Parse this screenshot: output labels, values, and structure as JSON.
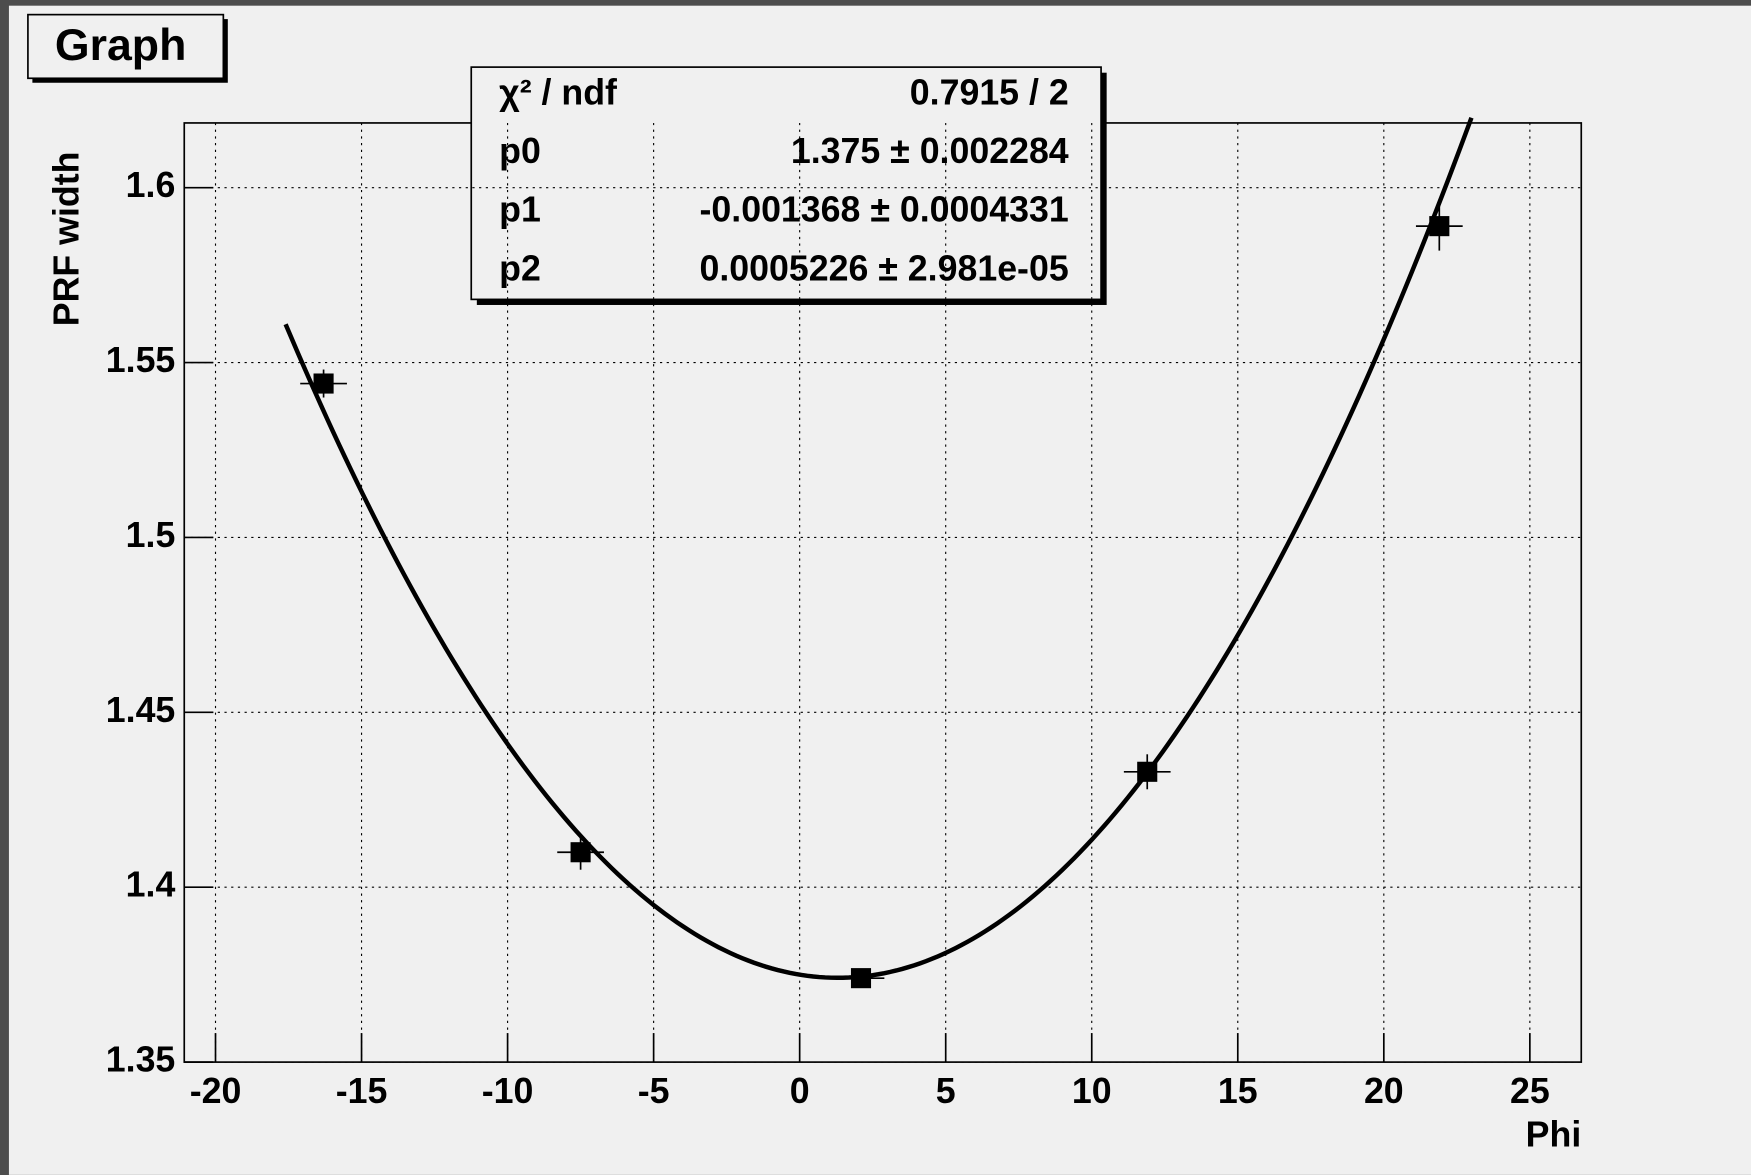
{
  "chart_data": {
    "type": "scatter",
    "title": "Graph",
    "x_label": "Phi",
    "y_label": "PRF width",
    "x": [
      -16.3,
      -7.5,
      2.1,
      11.9,
      21.9
    ],
    "values": [
      1.544,
      1.41,
      1.374,
      1.433,
      1.589
    ],
    "xerr": [
      0.8,
      0.8,
      0.8,
      0.8,
      0.8
    ],
    "yerr": [
      0.004,
      0.005,
      0.002,
      0.005,
      0.007
    ],
    "color": "#000000",
    "xlim": [
      -21.07,
      26.76
    ],
    "ylim": [
      1.35,
      1.6185
    ],
    "xticks": [
      -20,
      -15,
      -10,
      -5,
      0,
      5,
      10,
      15,
      20,
      25
    ],
    "yticks": [
      1.35,
      1.4,
      1.45,
      1.5,
      1.55,
      1.6
    ],
    "grid": true,
    "fit": {
      "range": [
        -17.6,
        23
      ],
      "chi2": {
        "name": "χ² / ndf",
        "label": "0.7915 / 2"
      },
      "params": [
        {
          "name": "p0",
          "value": 1.375,
          "label": "1.375 ± 0.002284"
        },
        {
          "name": "p1",
          "value": -0.001368,
          "label": "-0.001368 ± 0.0004331"
        },
        {
          "name": "p2",
          "value": 0.0005226,
          "label": "0.0005226 ± 2.981e-05"
        }
      ]
    }
  }
}
